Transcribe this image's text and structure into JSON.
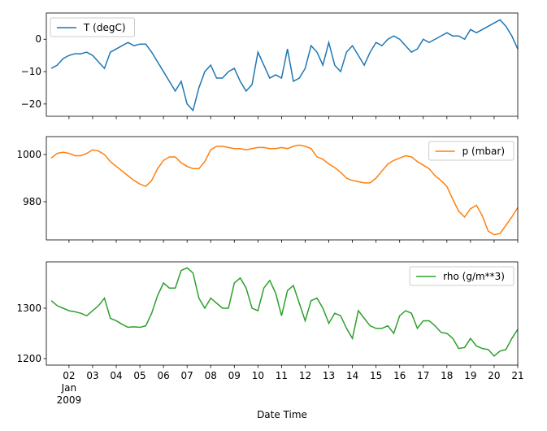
{
  "chart_data": {
    "type": "line",
    "xlabel": "Date Time",
    "xlim": [
      1.04,
      21
    ],
    "xticks": [
      {
        "value": 2,
        "label": "02\nJan\n2009"
      },
      {
        "value": 3,
        "label": "03"
      },
      {
        "value": 4,
        "label": "04"
      },
      {
        "value": 5,
        "label": "05"
      },
      {
        "value": 6,
        "label": "06"
      },
      {
        "value": 7,
        "label": "07"
      },
      {
        "value": 8,
        "label": "08"
      },
      {
        "value": 9,
        "label": "09"
      },
      10,
      11,
      12,
      13,
      14,
      15,
      16,
      17,
      18,
      19,
      20,
      21
    ],
    "x": [
      1.25,
      1.5,
      1.75,
      2,
      2.25,
      2.5,
      2.75,
      3,
      3.25,
      3.5,
      3.75,
      4,
      4.25,
      4.5,
      4.75,
      5,
      5.25,
      5.5,
      5.75,
      6,
      6.25,
      6.5,
      6.75,
      7,
      7.25,
      7.5,
      7.75,
      8,
      8.25,
      8.5,
      8.75,
      9,
      9.25,
      9.5,
      9.75,
      10,
      10.25,
      10.5,
      10.75,
      11,
      11.25,
      11.5,
      11.75,
      12,
      12.25,
      12.5,
      12.75,
      13,
      13.25,
      13.5,
      13.75,
      14,
      14.25,
      14.5,
      14.75,
      15,
      15.25,
      15.5,
      15.75,
      16,
      16.25,
      16.5,
      16.75,
      17,
      17.25,
      17.5,
      17.75,
      18,
      18.25,
      18.5,
      18.75,
      19,
      19.25,
      19.5,
      19.75,
      20,
      20.25,
      20.5,
      20.75,
      21
    ],
    "panels": [
      {
        "ylim": [
          -23.8,
          8.1
        ],
        "yticks": [
          {
            "value": -20,
            "label": "−20"
          },
          {
            "value": -10,
            "label": "−10"
          },
          0
        ],
        "legend": "upper left",
        "series": [
          {
            "name": "T (degC)",
            "color": "#1f77b4",
            "values": [
              -9,
              -8,
              -6,
              -5,
              -4.5,
              -4.5,
              -4,
              -5,
              -7,
              -9,
              -4,
              -3,
              -2,
              -1,
              -2,
              -1.5,
              -1.5,
              -4,
              -7,
              -10,
              -13,
              -16,
              -13,
              -20,
              -22,
              -15,
              -10,
              -8,
              -12,
              -12,
              -10,
              -9,
              -13,
              -16,
              -14,
              -4,
              -8,
              -12,
              -11,
              -12,
              -3,
              -13,
              -12,
              -9,
              -2,
              -4,
              -8,
              -1,
              -8,
              -10,
              -4,
              -2,
              -5,
              -8,
              -4,
              -1,
              -2,
              0,
              1,
              0,
              -2,
              -4,
              -3,
              0,
              -1,
              0,
              1,
              2,
              1,
              1,
              0,
              3,
              2,
              3,
              4,
              5,
              6,
              4,
              1,
              -3
            ]
          }
        ]
      },
      {
        "ylim": [
          963.8,
          1007.6
        ],
        "yticks": [
          980,
          1000
        ],
        "legend": "upper right",
        "series": [
          {
            "name": "p (mbar)",
            "color": "#ff7f0e",
            "values": [
              998.5,
              1000.5,
              1001,
              1000.5,
              999.5,
              999.5,
              1000.5,
              1002,
              1001.5,
              1000,
              997,
              995,
              993,
              991,
              989,
              987.5,
              986.5,
              989,
              994,
              997.5,
              999,
              999,
              996.5,
              995,
              994,
              994,
              997,
              1002,
              1003.5,
              1003.5,
              1003,
              1002.5,
              1002.5,
              1002,
              1002.5,
              1003,
              1003,
              1002.5,
              1002.5,
              1003,
              1002.5,
              1003.5,
              1004,
              1003.5,
              1002.5,
              999,
              998,
              996,
              994.5,
              992.5,
              990,
              989,
              988.5,
              988,
              988,
              990,
              993,
              996,
              997.5,
              998.5,
              999.5,
              999,
              997,
              995.5,
              994,
              991,
              989,
              986.5,
              981,
              976,
              973.5,
              977,
              978.5,
              974,
              967.5,
              966,
              966.5,
              970,
              973.5,
              977.5
            ]
          }
        ]
      },
      {
        "ylim": [
          1187,
          1392
        ],
        "yticks": [
          1200,
          1300
        ],
        "legend": "upper right",
        "series": [
          {
            "name": "rho (g/m**3)",
            "color": "#2ca02c",
            "values": [
              1315,
              1305,
              1300,
              1295,
              1293,
              1290,
              1285,
              1295,
              1305,
              1320,
              1280,
              1275,
              1268,
              1262,
              1263,
              1262,
              1265,
              1290,
              1325,
              1350,
              1340,
              1340,
              1375,
              1380,
              1370,
              1320,
              1300,
              1320,
              1310,
              1300,
              1300,
              1350,
              1360,
              1340,
              1300,
              1295,
              1340,
              1355,
              1330,
              1285,
              1335,
              1345,
              1310,
              1275,
              1315,
              1320,
              1300,
              1270,
              1290,
              1285,
              1260,
              1240,
              1295,
              1280,
              1265,
              1260,
              1260,
              1265,
              1250,
              1285,
              1295,
              1290,
              1260,
              1275,
              1275,
              1265,
              1252,
              1250,
              1240,
              1220,
              1222,
              1240,
              1225,
              1220,
              1218,
              1205,
              1215,
              1218,
              1240,
              1258
            ]
          }
        ]
      }
    ]
  }
}
